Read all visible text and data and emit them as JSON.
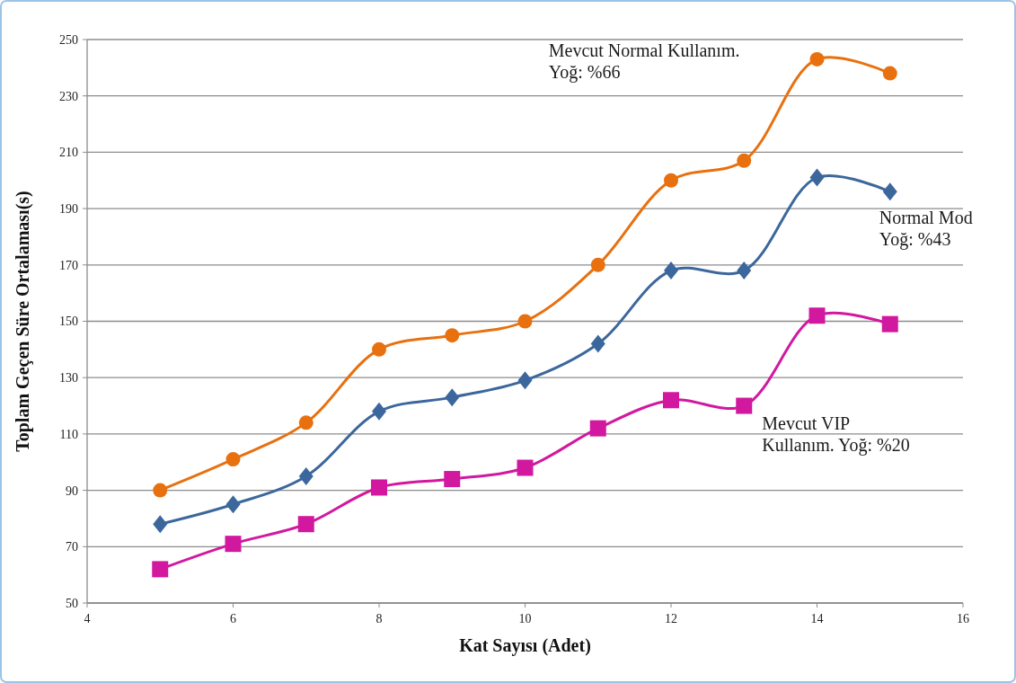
{
  "chart_data": {
    "type": "line",
    "xlabel": "Kat Sayısı (Adet)",
    "ylabel": "Toplam Geçen Süre Ortalaması(s)",
    "x": [
      5,
      6,
      7,
      8,
      9,
      10,
      11,
      12,
      13,
      14,
      15
    ],
    "xlim": [
      4,
      16
    ],
    "xticks": [
      4,
      6,
      8,
      10,
      12,
      14,
      16
    ],
    "ylim": [
      50,
      250
    ],
    "yticks": [
      50,
      70,
      90,
      110,
      130,
      150,
      170,
      190,
      210,
      230,
      250
    ],
    "grid": "y",
    "series": [
      {
        "name": "Mevcut Normal Kullanım.\nYoğ: %66",
        "color": "#e8700f",
        "marker": "circle",
        "values": [
          90,
          101,
          114,
          140,
          145,
          150,
          170,
          200,
          207,
          243,
          238
        ]
      },
      {
        "name": "Normal Mod\nYoğ: %43",
        "color": "#3c679c",
        "marker": "diamond",
        "values": [
          78,
          85,
          95,
          118,
          123,
          129,
          142,
          168,
          168,
          201,
          196
        ]
      },
      {
        "name": "Mevcut VIP\nKullanım. Yoğ: %20",
        "color": "#d1189f",
        "marker": "square",
        "values": [
          62,
          71,
          78,
          91,
          94,
          98,
          112,
          122,
          120,
          152,
          149
        ]
      }
    ]
  }
}
